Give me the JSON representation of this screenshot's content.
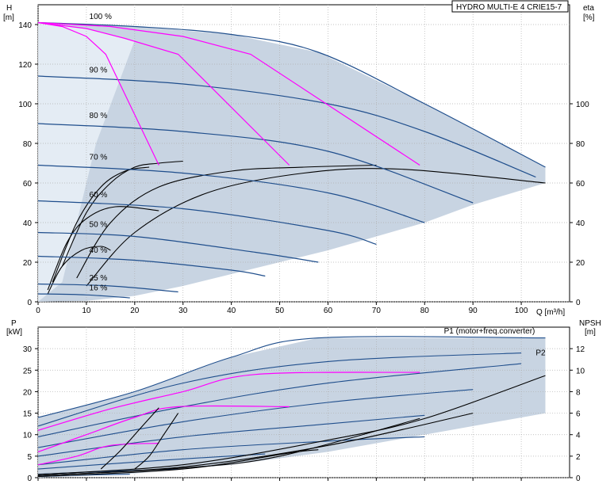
{
  "chart_data": [
    {
      "type": "line",
      "title": "HYDRO MULTI-E 4 CRIE15-7",
      "ylabel_left": "H",
      "ylabel_left_unit": "[m]",
      "ylabel_right": "eta",
      "ylabel_right_unit": "[%]",
      "xlabel": "Q [m³/h]",
      "xlim": [
        0,
        110
      ],
      "ylim_left": [
        0,
        150
      ],
      "ylim_right": [
        0,
        150
      ],
      "x_ticks": [
        "0",
        "10",
        "20",
        "30",
        "40",
        "50",
        "60",
        "70",
        "80",
        "90",
        "100"
      ],
      "y_ticks_left": [
        "0",
        "20",
        "40",
        "60",
        "80",
        "100",
        "120",
        "140"
      ],
      "y_ticks_right": [
        "0",
        "20",
        "40",
        "60",
        "80",
        "100"
      ],
      "grid": true,
      "speed_labels": [
        {
          "text": "100 %",
          "q": 6,
          "h": 142
        },
        {
          "text": "90 %",
          "q": 6,
          "h": 115
        },
        {
          "text": "80 %",
          "q": 6,
          "h": 92
        },
        {
          "text": "70 %",
          "q": 6,
          "h": 71
        },
        {
          "text": "60 %",
          "q": 6,
          "h": 52
        },
        {
          "text": "50 %",
          "q": 6,
          "h": 37
        },
        {
          "text": "40 %",
          "q": 6,
          "h": 24
        },
        {
          "text": "25 %",
          "q": 6,
          "h": 10
        },
        {
          "text": "16 %",
          "q": 6,
          "h": 5
        }
      ],
      "series": [
        {
          "name": "100 %",
          "points": [
            [
              0,
              141
            ],
            [
              20,
              139
            ],
            [
              40,
              135
            ],
            [
              58,
              126
            ],
            [
              80,
              100
            ],
            [
              105,
              68
            ]
          ]
        },
        {
          "name": "90 %",
          "points": [
            [
              0,
              114
            ],
            [
              30,
              110
            ],
            [
              60,
              100
            ],
            [
              80,
              86
            ],
            [
              103,
              63
            ]
          ]
        },
        {
          "name": "80 %",
          "points": [
            [
              0,
              90
            ],
            [
              30,
              86
            ],
            [
              60,
              76
            ],
            [
              90,
              50
            ]
          ]
        },
        {
          "name": "70 %",
          "points": [
            [
              0,
              69
            ],
            [
              30,
              65
            ],
            [
              60,
              55
            ],
            [
              80,
              40
            ]
          ]
        },
        {
          "name": "60 %",
          "points": [
            [
              0,
              51
            ],
            [
              30,
              47
            ],
            [
              60,
              36
            ],
            [
              70,
              29
            ]
          ]
        },
        {
          "name": "50 %",
          "points": [
            [
              0,
              35
            ],
            [
              20,
              33
            ],
            [
              45,
              25
            ],
            [
              58,
              20
            ]
          ]
        },
        {
          "name": "40 %",
          "points": [
            [
              0,
              23
            ],
            [
              20,
              21
            ],
            [
              40,
              16
            ],
            [
              47,
              13
            ]
          ]
        },
        {
          "name": "25 %",
          "points": [
            [
              0,
              9
            ],
            [
              15,
              8
            ],
            [
              29,
              5
            ]
          ]
        },
        {
          "name": "16 %",
          "points": [
            [
              0,
              4
            ],
            [
              10,
              3.5
            ],
            [
              19,
              2
            ]
          ]
        }
      ],
      "pink_limits": [
        {
          "points": [
            [
              0,
              141
            ],
            [
              5,
              139
            ],
            [
              10,
              134
            ],
            [
              14,
              125
            ],
            [
              25,
              69
            ]
          ]
        },
        {
          "points": [
            [
              0,
              141
            ],
            [
              10,
              138
            ],
            [
              18,
              133
            ],
            [
              29,
              125
            ],
            [
              52,
              69
            ]
          ]
        },
        {
          "points": [
            [
              0,
              141
            ],
            [
              15,
              139
            ],
            [
              30,
              134
            ],
            [
              44,
              125
            ],
            [
              79,
              69
            ]
          ]
        }
      ],
      "efficiency_curves": [
        {
          "points": [
            [
              5,
              18
            ],
            [
              10,
              45
            ],
            [
              15,
              60
            ],
            [
              20,
              68
            ],
            [
              25,
              70
            ],
            [
              30,
              71
            ]
          ]
        },
        {
          "points": [
            [
              8,
              12
            ],
            [
              15,
              40
            ],
            [
              25,
              58
            ],
            [
              40,
              66
            ],
            [
              55,
              68
            ],
            [
              70,
              69
            ]
          ]
        },
        {
          "points": [
            [
              10,
              8
            ],
            [
              20,
              35
            ],
            [
              35,
              55
            ],
            [
              55,
              65
            ],
            [
              75,
              67
            ],
            [
              105,
              60
            ]
          ]
        },
        {
          "points": [
            [
              3,
              10
            ],
            [
              8,
              40
            ],
            [
              13,
              58
            ],
            [
              18,
              66
            ],
            [
              23,
              68
            ]
          ]
        },
        {
          "points": [
            [
              2,
              6
            ],
            [
              6,
              30
            ],
            [
              10,
              42
            ],
            [
              16,
              48
            ],
            [
              25,
              46
            ]
          ]
        },
        {
          "points": [
            [
              2,
              4
            ],
            [
              5,
              18
            ],
            [
              9,
              26
            ],
            [
              13,
              28
            ],
            [
              15,
              26
            ]
          ]
        }
      ]
    },
    {
      "type": "line",
      "ylabel_left": "P",
      "ylabel_left_unit": "[kW]",
      "ylabel_right": "NPSH",
      "ylabel_right_unit": "[m]",
      "xlim": [
        0,
        110
      ],
      "ylim_left": [
        0,
        35
      ],
      "ylim_right": [
        0,
        14
      ],
      "y_ticks_left": [
        "0",
        "5",
        "10",
        "15",
        "20",
        "25",
        "30"
      ],
      "y_ticks_right": [
        "0",
        "2",
        "4",
        "6",
        "8",
        "10",
        "12"
      ],
      "grid": true,
      "legend_labels": [
        {
          "text": "P1 (motor+freq.converter)",
          "q": 84,
          "p": 33.5
        },
        {
          "text": "P2",
          "q": 103,
          "p": 28.5
        }
      ],
      "series": [
        {
          "name": "P1 (motor+freq.converter)",
          "points": [
            [
              0,
              14
            ],
            [
              20,
              20
            ],
            [
              40,
              28
            ],
            [
              58,
              32.5
            ],
            [
              105,
              32.5
            ]
          ]
        },
        {
          "name": "P2",
          "points": [
            [
              0,
              12
            ],
            [
              30,
              22
            ],
            [
              60,
              27
            ],
            [
              100,
              29
            ]
          ]
        },
        {
          "name": "",
          "points": [
            [
              0,
              9.5
            ],
            [
              30,
              16.5
            ],
            [
              60,
              22
            ],
            [
              100,
              26.5
            ]
          ]
        },
        {
          "name": "",
          "points": [
            [
              0,
              7
            ],
            [
              30,
              13
            ],
            [
              60,
              17.5
            ],
            [
              90,
              20.5
            ]
          ]
        },
        {
          "name": "",
          "points": [
            [
              0,
              5
            ],
            [
              30,
              9.5
            ],
            [
              60,
              12.5
            ],
            [
              80,
              14.5
            ]
          ]
        },
        {
          "name": "",
          "points": [
            [
              0,
              3
            ],
            [
              30,
              6.5
            ],
            [
              60,
              8.5
            ],
            [
              80,
              9.5
            ]
          ]
        },
        {
          "name": "",
          "points": [
            [
              0,
              2
            ],
            [
              25,
              4
            ],
            [
              47,
              5.5
            ]
          ]
        },
        {
          "name": "",
          "points": [
            [
              0,
              0.8
            ],
            [
              15,
              1.5
            ],
            [
              29,
              2
            ]
          ]
        },
        {
          "name": "",
          "points": [
            [
              0,
              0.3
            ],
            [
              10,
              0.6
            ],
            [
              19,
              0.8
            ]
          ]
        }
      ],
      "pink_lines": [
        {
          "points": [
            [
              0,
              11
            ],
            [
              15,
              16
            ],
            [
              30,
              20
            ],
            [
              45,
              24
            ],
            [
              79,
              24.5
            ]
          ]
        },
        {
          "points": [
            [
              0,
              6
            ],
            [
              10,
              10
            ],
            [
              20,
              14
            ],
            [
              29,
              16.5
            ],
            [
              52,
              16.5
            ]
          ]
        },
        {
          "points": [
            [
              0,
              3
            ],
            [
              8,
              5
            ],
            [
              15,
              7.5
            ],
            [
              25,
              8
            ]
          ]
        }
      ],
      "npsh_curves": [
        {
          "points": [
            [
              0,
              0.3
            ],
            [
              30,
              1.2
            ],
            [
              60,
              3.5
            ],
            [
              80,
              5.5
            ],
            [
              105,
              9.5
            ]
          ]
        },
        {
          "points": [
            [
              0,
              0.2
            ],
            [
              30,
              1
            ],
            [
              60,
              3
            ],
            [
              90,
              6
            ]
          ]
        },
        {
          "points": [
            [
              0,
              0.2
            ],
            [
              30,
              0.9
            ],
            [
              50,
              2
            ],
            [
              79,
              5.5
            ]
          ]
        },
        {
          "points": [
            [
              0,
              0.1
            ],
            [
              30,
              0.8
            ],
            [
              52,
              2.3
            ],
            [
              58,
              2.6
            ]
          ]
        },
        {
          "points": [
            [
              20,
              0.8
            ],
            [
              23,
              2
            ],
            [
              26,
              4
            ],
            [
              29,
              6
            ]
          ]
        },
        {
          "points": [
            [
              13,
              0.8
            ],
            [
              17,
              2.5
            ],
            [
              21,
              4.5
            ],
            [
              25,
              6.5
            ]
          ]
        }
      ]
    }
  ]
}
